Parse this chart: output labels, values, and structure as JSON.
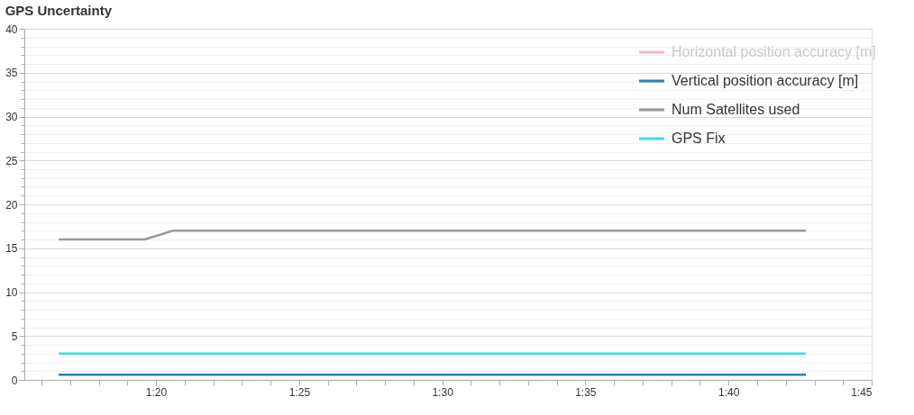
{
  "chart_data": {
    "type": "line",
    "title": "GPS Uncertainty",
    "x": [
      1.2767,
      1.3267,
      1.3433,
      1.7117
    ],
    "series": [
      {
        "name": "Horizontal position accuracy [m]",
        "color": "#f4b6c2",
        "values": [
          null,
          null,
          null,
          null
        ]
      },
      {
        "name": "Vertical position accuracy [m]",
        "color": "#2e7fb0",
        "values": [
          0.6,
          0.6,
          0.6,
          0.6
        ]
      },
      {
        "name": "Num Satellites used",
        "color": "#999999",
        "values": [
          16,
          16,
          17,
          17
        ]
      },
      {
        "name": "GPS Fix",
        "color": "#33e0e0",
        "values": [
          3,
          3,
          3,
          3
        ]
      }
    ],
    "xlim": [
      1.2567,
      1.75
    ],
    "xticks": [
      {
        "value": 1.2667,
        "label": null
      },
      {
        "value": 1.2833,
        "label": null
      },
      {
        "value": 1.3,
        "label": null
      },
      {
        "value": 1.3167,
        "label": null
      },
      {
        "value": 1.3333,
        "label": "1:20"
      },
      {
        "value": 1.35,
        "label": null
      },
      {
        "value": 1.3667,
        "label": null
      },
      {
        "value": 1.3833,
        "label": null
      },
      {
        "value": 1.4,
        "label": null
      },
      {
        "value": 1.4167,
        "label": "1:25"
      },
      {
        "value": 1.4333,
        "label": null
      },
      {
        "value": 1.45,
        "label": null
      },
      {
        "value": 1.4667,
        "label": null
      },
      {
        "value": 1.4833,
        "label": null
      },
      {
        "value": 1.5,
        "label": "1:30"
      },
      {
        "value": 1.5167,
        "label": null
      },
      {
        "value": 1.5333,
        "label": null
      },
      {
        "value": 1.55,
        "label": null
      },
      {
        "value": 1.5667,
        "label": null
      },
      {
        "value": 1.5833,
        "label": "1:35"
      },
      {
        "value": 1.6,
        "label": null
      },
      {
        "value": 1.6167,
        "label": null
      },
      {
        "value": 1.6333,
        "label": null
      },
      {
        "value": 1.65,
        "label": null
      },
      {
        "value": 1.6667,
        "label": "1:40"
      },
      {
        "value": 1.6833,
        "label": null
      },
      {
        "value": 1.7,
        "label": null
      },
      {
        "value": 1.7167,
        "label": null
      },
      {
        "value": 1.7333,
        "label": null
      },
      {
        "value": 1.75,
        "label": "1:45"
      }
    ],
    "ylim": [
      0,
      40
    ],
    "yticks": [
      0,
      {
        "value": 1,
        "label": null
      },
      {
        "value": 2,
        "label": null
      },
      {
        "value": 3,
        "label": null
      },
      {
        "value": 4,
        "label": null
      },
      5,
      {
        "value": 6,
        "label": null
      },
      {
        "value": 7,
        "label": null
      },
      {
        "value": 8,
        "label": null
      },
      {
        "value": 9,
        "label": null
      },
      10,
      {
        "value": 11,
        "label": null
      },
      {
        "value": 12,
        "label": null
      },
      {
        "value": 13,
        "label": null
      },
      {
        "value": 14,
        "label": null
      },
      15,
      {
        "value": 16,
        "label": null
      },
      {
        "value": 17,
        "label": null
      },
      {
        "value": 18,
        "label": null
      },
      {
        "value": 19,
        "label": null
      },
      20,
      {
        "value": 21,
        "label": null
      },
      {
        "value": 22,
        "label": null
      },
      {
        "value": 23,
        "label": null
      },
      {
        "value": 24,
        "label": null
      },
      25,
      {
        "value": 26,
        "label": null
      },
      {
        "value": 27,
        "label": null
      },
      {
        "value": 28,
        "label": null
      },
      {
        "value": 29,
        "label": null
      },
      30,
      {
        "value": 31,
        "label": null
      },
      {
        "value": 32,
        "label": null
      },
      {
        "value": 33,
        "label": null
      },
      {
        "value": 34,
        "label": null
      },
      35,
      {
        "value": 36,
        "label": null
      },
      {
        "value": 37,
        "label": null
      },
      {
        "value": 38,
        "label": null
      },
      {
        "value": 39,
        "label": null
      },
      40
    ],
    "grid": "y",
    "legend": "top right"
  }
}
